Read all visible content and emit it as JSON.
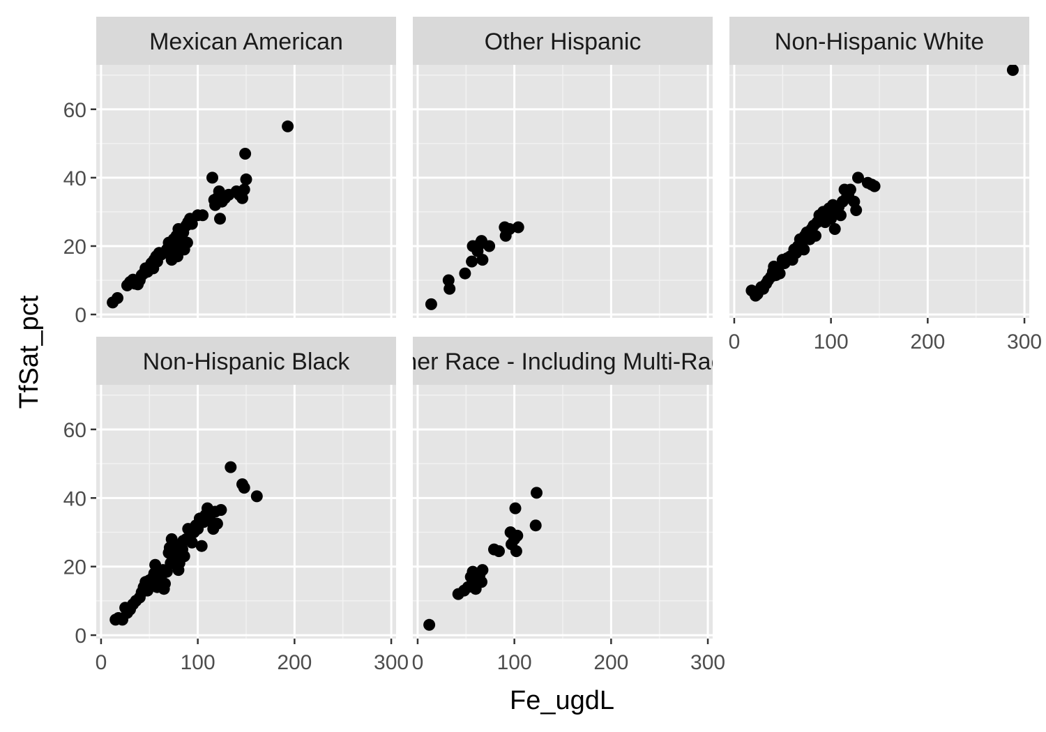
{
  "chart_data": {
    "type": "scatter",
    "facet_layout": "wrap",
    "xlabel": "Fe_ugdL",
    "ylabel": "TfSat_pct",
    "xlim": [
      -5,
      305
    ],
    "ylim": [
      -1,
      73
    ],
    "x_ticks": [
      0,
      100,
      200,
      300
    ],
    "x_tick_labels": [
      "0",
      "100",
      "200",
      "300"
    ],
    "y_ticks": [
      0,
      20,
      40,
      60
    ],
    "y_tick_labels": [
      "0",
      "20",
      "40",
      "60"
    ],
    "grid": true,
    "point_color": "#000000",
    "panel_background": "#e5e5e5",
    "strip_background": "#d9d9d9",
    "panels": [
      {
        "strip": "Mexican American",
        "points": [
          [
            12,
            3.5
          ],
          [
            17,
            4.8
          ],
          [
            27,
            8.5
          ],
          [
            30,
            9.5
          ],
          [
            33,
            10.2
          ],
          [
            35,
            9
          ],
          [
            38,
            8.8
          ],
          [
            40,
            10
          ],
          [
            42,
            11.5
          ],
          [
            44,
            12
          ],
          [
            46,
            13.5
          ],
          [
            48,
            12.5
          ],
          [
            50,
            14
          ],
          [
            52,
            15
          ],
          [
            54,
            13.5
          ],
          [
            55,
            16
          ],
          [
            57,
            17
          ],
          [
            58,
            15.5
          ],
          [
            60,
            18
          ],
          [
            62,
            17.5
          ],
          [
            65,
            18
          ],
          [
            68,
            19
          ],
          [
            70,
            21
          ],
          [
            72,
            20
          ],
          [
            73,
            16
          ],
          [
            75,
            22
          ],
          [
            76,
            18.5
          ],
          [
            78,
            23
          ],
          [
            79,
            17
          ],
          [
            80,
            25
          ],
          [
            82,
            20
          ],
          [
            84,
            22
          ],
          [
            85,
            24
          ],
          [
            86,
            19
          ],
          [
            88,
            26
          ],
          [
            89,
            21
          ],
          [
            90,
            27
          ],
          [
            92,
            28
          ],
          [
            94,
            26.5
          ],
          [
            100,
            29
          ],
          [
            105,
            29
          ],
          [
            115,
            40
          ],
          [
            117,
            33.5
          ],
          [
            118,
            32
          ],
          [
            120,
            34
          ],
          [
            122,
            36
          ],
          [
            123,
            28
          ],
          [
            125,
            33
          ],
          [
            128,
            34
          ],
          [
            132,
            35
          ],
          [
            140,
            36
          ],
          [
            143,
            35
          ],
          [
            146,
            34
          ],
          [
            148,
            36.5
          ],
          [
            149,
            47
          ],
          [
            150,
            39.5
          ],
          [
            193,
            55
          ]
        ]
      },
      {
        "strip": "Other Hispanic",
        "points": [
          [
            14,
            3
          ],
          [
            32,
            10
          ],
          [
            33,
            7.5
          ],
          [
            49,
            12
          ],
          [
            56,
            15.5
          ],
          [
            57,
            20
          ],
          [
            62,
            18.5
          ],
          [
            64,
            20.5
          ],
          [
            66,
            21.5
          ],
          [
            67,
            16
          ],
          [
            74,
            20
          ],
          [
            90,
            25.5
          ],
          [
            91,
            23
          ],
          [
            95,
            25
          ],
          [
            104,
            25.5
          ]
        ]
      },
      {
        "strip": "Non-Hispanic White",
        "points": [
          [
            18,
            7
          ],
          [
            22,
            5.5
          ],
          [
            24,
            6
          ],
          [
            28,
            8
          ],
          [
            30,
            7.5
          ],
          [
            33,
            9
          ],
          [
            35,
            10
          ],
          [
            38,
            11
          ],
          [
            40,
            12.5
          ],
          [
            41,
            14
          ],
          [
            43,
            11.5
          ],
          [
            45,
            13
          ],
          [
            47,
            12
          ],
          [
            50,
            16
          ],
          [
            52,
            15
          ],
          [
            55,
            16.5
          ],
          [
            58,
            17
          ],
          [
            60,
            16
          ],
          [
            62,
            19
          ],
          [
            64,
            18
          ],
          [
            66,
            20
          ],
          [
            68,
            22
          ],
          [
            70,
            21.5
          ],
          [
            72,
            19
          ],
          [
            73,
            23
          ],
          [
            75,
            24
          ],
          [
            78,
            22
          ],
          [
            80,
            25
          ],
          [
            82,
            26
          ],
          [
            84,
            23
          ],
          [
            86,
            27
          ],
          [
            88,
            29
          ],
          [
            90,
            28
          ],
          [
            92,
            30
          ],
          [
            94,
            27
          ],
          [
            96,
            29.5
          ],
          [
            98,
            31
          ],
          [
            100,
            28
          ],
          [
            102,
            32
          ],
          [
            104,
            25
          ],
          [
            106,
            30
          ],
          [
            108,
            31.5
          ],
          [
            110,
            29
          ],
          [
            112,
            33
          ],
          [
            114,
            36.5
          ],
          [
            116,
            34
          ],
          [
            118,
            35
          ],
          [
            120,
            36.5
          ],
          [
            124,
            33
          ],
          [
            126,
            30.5
          ],
          [
            128,
            40
          ],
          [
            138,
            38.5
          ],
          [
            142,
            38
          ],
          [
            145,
            37.5
          ],
          [
            288,
            71.5
          ]
        ]
      },
      {
        "strip": "Non-Hispanic Black",
        "points": [
          [
            15,
            4.5
          ],
          [
            18,
            5
          ],
          [
            22,
            4.5
          ],
          [
            25,
            8
          ],
          [
            27,
            6.5
          ],
          [
            30,
            7.5
          ],
          [
            33,
            9
          ],
          [
            36,
            10
          ],
          [
            40,
            11
          ],
          [
            42,
            12.5
          ],
          [
            44,
            14
          ],
          [
            46,
            15.5
          ],
          [
            48,
            13
          ],
          [
            50,
            16
          ],
          [
            52,
            15
          ],
          [
            54,
            17
          ],
          [
            55,
            18
          ],
          [
            56,
            20.5
          ],
          [
            57,
            16.5
          ],
          [
            58,
            14
          ],
          [
            60,
            18
          ],
          [
            62,
            17
          ],
          [
            64,
            19
          ],
          [
            65,
            13.5
          ],
          [
            66,
            15
          ],
          [
            68,
            18.5
          ],
          [
            70,
            24
          ],
          [
            71,
            25.5
          ],
          [
            72,
            21
          ],
          [
            73,
            28
          ],
          [
            74,
            23
          ],
          [
            75,
            22
          ],
          [
            76,
            24
          ],
          [
            78,
            26
          ],
          [
            79,
            20
          ],
          [
            80,
            19
          ],
          [
            81,
            21
          ],
          [
            82,
            24
          ],
          [
            84,
            25
          ],
          [
            85,
            27.5
          ],
          [
            86,
            23
          ],
          [
            88,
            28
          ],
          [
            90,
            31
          ],
          [
            92,
            29
          ],
          [
            94,
            27
          ],
          [
            96,
            30
          ],
          [
            98,
            32
          ],
          [
            100,
            31
          ],
          [
            102,
            34
          ],
          [
            104,
            26
          ],
          [
            106,
            33
          ],
          [
            108,
            35
          ],
          [
            110,
            37
          ],
          [
            112,
            34
          ],
          [
            114,
            33
          ],
          [
            116,
            31
          ],
          [
            118,
            36
          ],
          [
            120,
            32.5
          ],
          [
            124,
            36.5
          ],
          [
            134,
            49
          ],
          [
            146,
            44
          ],
          [
            148,
            43
          ],
          [
            161,
            40.5
          ]
        ]
      },
      {
        "strip": "Other Race - Including Multi-Racial",
        "points": [
          [
            12,
            3
          ],
          [
            42,
            12
          ],
          [
            48,
            13
          ],
          [
            52,
            14
          ],
          [
            55,
            17
          ],
          [
            57,
            18.5
          ],
          [
            58,
            16
          ],
          [
            59,
            15
          ],
          [
            60,
            13.5
          ],
          [
            62,
            16.5
          ],
          [
            64,
            17.5
          ],
          [
            66,
            15.5
          ],
          [
            67,
            19
          ],
          [
            79,
            25
          ],
          [
            84,
            24.5
          ],
          [
            96,
            30
          ],
          [
            97,
            26.5
          ],
          [
            100,
            28
          ],
          [
            101,
            37
          ],
          [
            102,
            24.5
          ],
          [
            103,
            29
          ],
          [
            122,
            32
          ],
          [
            123,
            41.5
          ]
        ]
      }
    ]
  }
}
